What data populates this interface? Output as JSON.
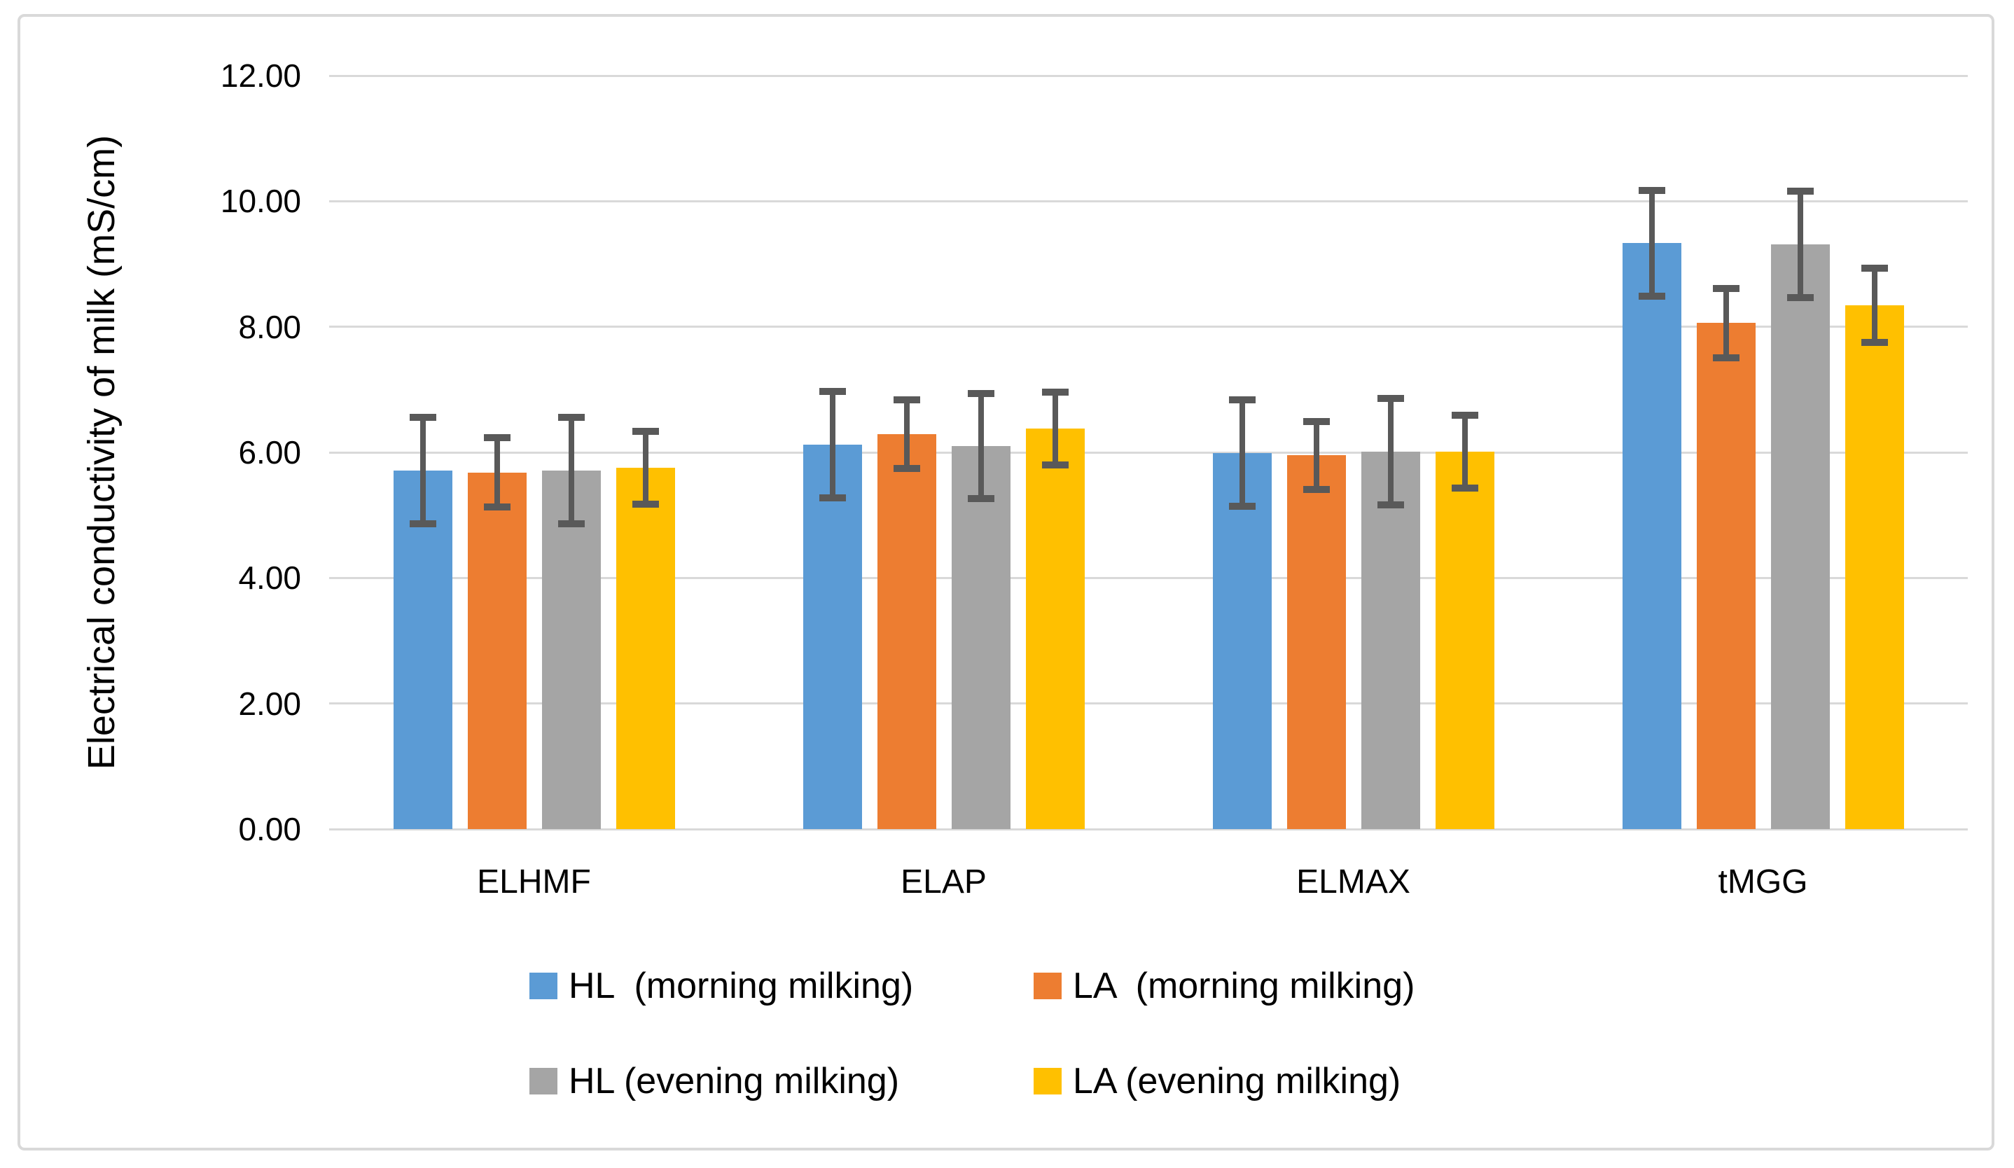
{
  "chart_data": {
    "type": "bar",
    "title": "",
    "categories": [
      "ELHMF",
      "ELAP",
      "ELMAX",
      "tMGG"
    ],
    "series": [
      {
        "name": "HL  (morning milking)",
        "color": "#5B9BD5",
        "values": [
          5.71,
          6.12,
          5.99,
          9.33
        ],
        "errors": [
          0.85,
          0.85,
          0.85,
          0.84
        ]
      },
      {
        "name": "LA  (morning milking)",
        "color": "#ED7D31",
        "values": [
          5.68,
          6.29,
          5.95,
          8.06
        ],
        "errors": [
          0.55,
          0.55,
          0.54,
          0.55
        ]
      },
      {
        "name": "HL (evening milking)",
        "color": "#A5A5A5",
        "values": [
          5.71,
          6.1,
          6.01,
          9.31
        ],
        "errors": [
          0.85,
          0.84,
          0.85,
          0.85
        ]
      },
      {
        "name": "LA (evening milking)",
        "color": "#FFC000",
        "values": [
          5.75,
          6.38,
          6.01,
          8.34
        ],
        "errors": [
          0.58,
          0.58,
          0.58,
          0.59
        ]
      }
    ],
    "ylabel": "Electrical conductivity of milk (mS/cm)",
    "xlabel": "",
    "ylim": [
      0,
      12
    ],
    "ytick_step": 2,
    "ytick_labels": [
      "0.00",
      "2.00",
      "4.00",
      "6.00",
      "8.00",
      "10.00",
      "12.00"
    ],
    "grid": true,
    "legend_position": "bottom",
    "legend_rows": [
      [
        "HL  (morning milking)",
        "LA  (morning milking)"
      ],
      [
        "HL (evening milking)",
        "LA (evening milking)"
      ]
    ],
    "colors": {
      "gridline": "#D9D9D9",
      "error_bar": "#595959",
      "frame_border": "#D9D9D9",
      "text": "#000000",
      "background": "#FFFFFF"
    }
  }
}
